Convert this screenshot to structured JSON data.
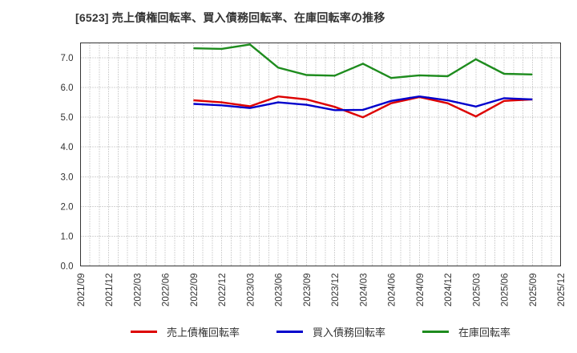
{
  "title": "[6523]  売上債権回転率、買入債務回転率、在庫回転率の推移",
  "chart_data": {
    "type": "line",
    "title": "[6523]  売上債権回転率、買入債務回転率、在庫回転率の推移",
    "xlabel": "",
    "ylabel": "",
    "ylim": [
      0.0,
      7.5
    ],
    "grid": "dotted horizontal at integers; dotted vertical monthly",
    "legend_position": "bottom",
    "x_ticks": [
      "2021/09",
      "2021/12",
      "2022/03",
      "2022/06",
      "2022/09",
      "2022/12",
      "2023/03",
      "2023/06",
      "2023/09",
      "2023/12",
      "2024/03",
      "2024/06",
      "2024/09",
      "2024/12",
      "2025/03",
      "2025/06",
      "2025/09",
      "2025/12"
    ],
    "y_tick_labels": [
      "0.0",
      "1.0",
      "2.0",
      "3.0",
      "4.0",
      "5.0",
      "6.0",
      "7.0"
    ],
    "series_x": [
      "2022/09",
      "2022/12",
      "2023/03",
      "2023/06",
      "2023/09",
      "2023/12",
      "2024/03",
      "2024/06",
      "2024/09",
      "2024/12",
      "2025/03",
      "2025/06",
      "2025/09"
    ],
    "series_start_tick_index": 4,
    "series": [
      {
        "name": "売上債権回転率",
        "color": "#dd0000",
        "values": [
          5.57,
          5.5,
          5.37,
          5.7,
          5.6,
          5.35,
          5.0,
          5.47,
          5.68,
          5.47,
          5.03,
          5.55,
          5.6
        ]
      },
      {
        "name": "買入債務回転率",
        "color": "#0000cc",
        "values": [
          5.45,
          5.4,
          5.31,
          5.5,
          5.42,
          5.24,
          5.25,
          5.55,
          5.7,
          5.57,
          5.36,
          5.64,
          5.6
        ]
      },
      {
        "name": "在庫回転率",
        "color": "#1e8c1e",
        "values": [
          7.32,
          7.3,
          7.45,
          6.67,
          6.42,
          6.4,
          6.8,
          6.32,
          6.41,
          6.38,
          6.95,
          6.46,
          6.44
        ]
      }
    ]
  },
  "legend": {
    "items": [
      {
        "label": "売上債権回転率",
        "color": "#dd0000"
      },
      {
        "label": "買入債務回転率",
        "color": "#0000cc"
      },
      {
        "label": "在庫回転率",
        "color": "#1e8c1e"
      }
    ]
  },
  "colors": {
    "axis_box": "#333333",
    "grid": "#aaaaaa",
    "tick_text": "#333333",
    "title_text": "#333333"
  }
}
